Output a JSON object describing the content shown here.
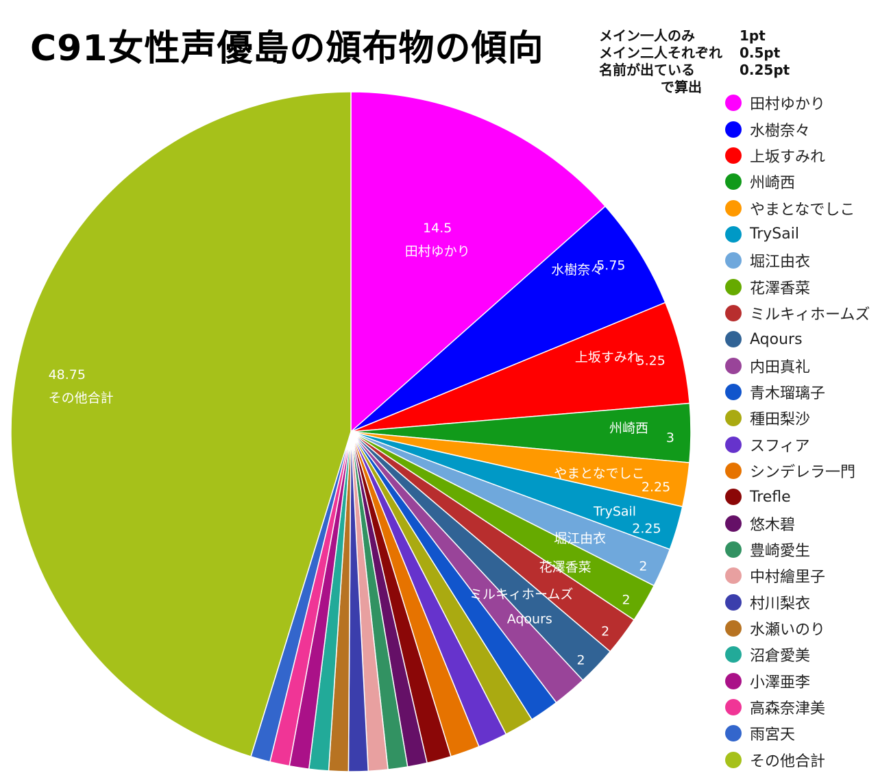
{
  "title": "C91女性声優島の頒布物の傾向",
  "note": {
    "rows": [
      {
        "label": "メイン一人のみ",
        "value": "1pt"
      },
      {
        "label": "メイン二人それぞれ",
        "value": "0.5pt"
      },
      {
        "label": "名前が出ている",
        "value": "0.25pt"
      }
    ],
    "tail": "で算出"
  },
  "chart_data": {
    "type": "pie",
    "title": "C91女性声優島の頒布物の傾向",
    "start": "top, clockwise",
    "legend_position": "right",
    "slices": [
      {
        "name": "田村ゆかり",
        "value": 14.5,
        "color": "#ff00ff",
        "label": "14.5"
      },
      {
        "name": "水樹奈々",
        "value": 5.75,
        "color": "#0000ff",
        "label": "5.75"
      },
      {
        "name": "上坂すみれ",
        "value": 5.25,
        "color": "#ff0000",
        "label": "5.25"
      },
      {
        "name": "州崎西",
        "value": 3,
        "color": "#119a1a",
        "label": "3"
      },
      {
        "name": "やまとなでしこ",
        "value": 2.25,
        "color": "#ff9900",
        "label": "2.25"
      },
      {
        "name": "TrySail",
        "value": 2.25,
        "color": "#0099c6",
        "label": "2.25"
      },
      {
        "name": "堀江由衣",
        "value": 2,
        "color": "#6fa8dc",
        "label": "2"
      },
      {
        "name": "花澤香菜",
        "value": 2,
        "color": "#66aa00",
        "label": "2"
      },
      {
        "name": "ミルキィホームズ",
        "value": 2,
        "color": "#b82e2e",
        "label": "2"
      },
      {
        "name": "Aqours",
        "value": 2,
        "color": "#316395",
        "label": "2"
      },
      {
        "name": "内田真礼",
        "value": 1.75,
        "color": "#994499",
        "label": ""
      },
      {
        "name": "青木瑠璃子",
        "value": 1.5,
        "color": "#1155cc",
        "label": ""
      },
      {
        "name": "種田梨沙",
        "value": 1.5,
        "color": "#aaaa11",
        "label": ""
      },
      {
        "name": "スフィア",
        "value": 1.5,
        "color": "#6633cc",
        "label": ""
      },
      {
        "name": "シンデレラ一門",
        "value": 1.5,
        "color": "#e67300",
        "label": ""
      },
      {
        "name": "Trefle",
        "value": 1.25,
        "color": "#8b0707",
        "label": ""
      },
      {
        "name": "悠木碧",
        "value": 1,
        "color": "#651067",
        "label": ""
      },
      {
        "name": "豊崎愛生",
        "value": 1,
        "color": "#329262",
        "label": ""
      },
      {
        "name": "中村繪里子",
        "value": 1,
        "color": "#e8a0a0",
        "label": ""
      },
      {
        "name": "村川梨衣",
        "value": 1,
        "color": "#3b3eac",
        "label": ""
      },
      {
        "name": "水瀬いのり",
        "value": 1,
        "color": "#b77322",
        "label": ""
      },
      {
        "name": "沼倉愛美",
        "value": 1,
        "color": "#22aa99",
        "label": ""
      },
      {
        "name": "小澤亜李",
        "value": 1,
        "color": "#aa1188",
        "label": ""
      },
      {
        "name": "高森奈津美",
        "value": 1,
        "color": "#f03596",
        "label": ""
      },
      {
        "name": "雨宮天",
        "value": 1,
        "color": "#3366cc",
        "label": ""
      },
      {
        "name": "その他合計",
        "value": 48.75,
        "color": "#a6c11a",
        "label": "48.75"
      }
    ]
  }
}
